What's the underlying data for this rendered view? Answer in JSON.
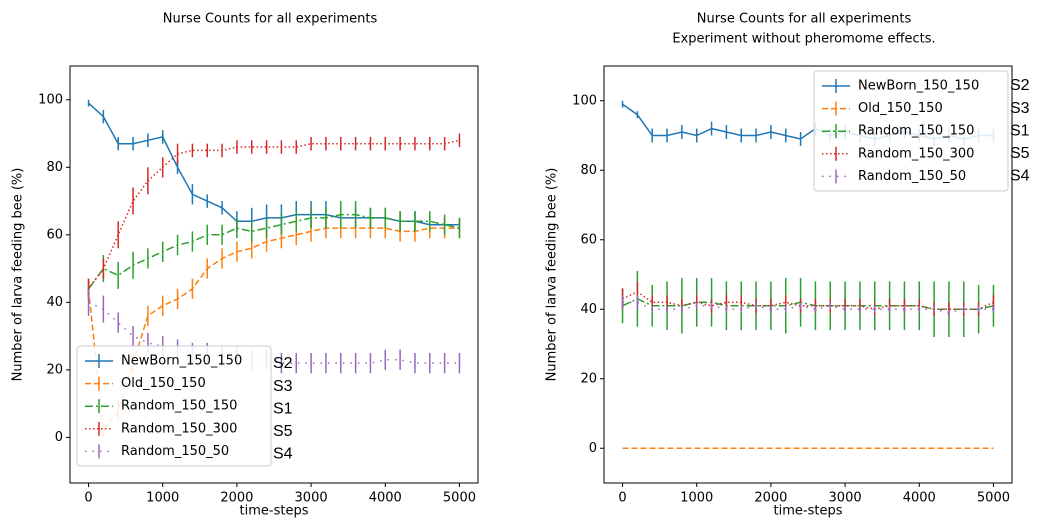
{
  "chart_data": [
    {
      "type": "line",
      "title": "Nurse Counts for all experiments",
      "xlabel": "time-steps",
      "ylabel": "Number of larva feeding bee (%)",
      "x": [
        0,
        200,
        400,
        600,
        800,
        1000,
        1200,
        1400,
        1600,
        1800,
        2000,
        2200,
        2400,
        2600,
        2800,
        3000,
        3200,
        3400,
        3600,
        3800,
        4000,
        4200,
        4400,
        4600,
        4800,
        5000
      ],
      "xlim": [
        -250,
        5250
      ],
      "ylim": [
        -13.5,
        110
      ],
      "xticks": [
        0,
        1000,
        2000,
        3000,
        4000,
        5000
      ],
      "yticks": [
        0,
        20,
        40,
        60,
        80,
        100
      ],
      "legend": "lower left",
      "annotations": [
        "S2",
        "S3",
        "S1",
        "S5",
        "S4"
      ],
      "series": [
        {
          "name": "NewBorn_150_150",
          "color": "#1f77b4",
          "linestyle": "solid",
          "values": [
            99,
            95,
            87,
            87,
            88,
            89,
            80,
            72,
            70,
            68,
            64,
            64,
            65,
            65,
            66,
            66,
            66,
            65,
            65,
            65,
            65,
            64,
            64,
            63,
            63,
            63
          ],
          "errors": [
            1,
            2,
            2,
            2,
            2,
            2,
            2,
            3,
            2,
            2,
            3,
            4,
            4,
            4,
            4,
            4,
            4,
            4,
            3,
            3,
            3,
            3,
            3,
            2,
            2,
            2
          ]
        },
        {
          "name": "Old_150_150",
          "color": "#ff7f0e",
          "linestyle": "dashed",
          "values": [
            44,
            2,
            8,
            22,
            36,
            39,
            41,
            44,
            50,
            53,
            55,
            56,
            58,
            59,
            60,
            61,
            62,
            62,
            62,
            62,
            62,
            61,
            61,
            62,
            62,
            62
          ],
          "errors": [
            2,
            2,
            3,
            3,
            3,
            3,
            3,
            3,
            3,
            3,
            3,
            3,
            3,
            3,
            3,
            3,
            3,
            3,
            3,
            3,
            3,
            3,
            3,
            3,
            3,
            3
          ]
        },
        {
          "name": "Random_150_150",
          "color": "#2ca02c",
          "linestyle": "dashdot",
          "values": [
            44,
            50,
            48,
            51,
            53,
            55,
            57,
            58,
            60,
            60,
            62,
            61,
            62,
            63,
            64,
            65,
            65,
            66,
            66,
            65,
            65,
            64,
            64,
            64,
            63,
            62
          ],
          "errors": [
            3,
            4,
            4,
            4,
            3,
            3,
            3,
            3,
            3,
            3,
            3,
            3,
            3,
            3,
            3,
            3,
            3,
            4,
            4,
            3,
            3,
            3,
            3,
            3,
            3,
            3
          ]
        },
        {
          "name": "Random_150_300",
          "color": "#d62728",
          "linestyle": "dotted",
          "values": [
            44,
            50,
            60,
            70,
            76,
            80,
            84,
            85,
            85,
            85,
            86,
            86,
            86,
            86,
            86,
            87,
            87,
            87,
            87,
            87,
            87,
            87,
            87,
            87,
            87,
            88
          ],
          "errors": [
            3,
            3,
            4,
            4,
            4,
            3,
            3,
            2,
            2,
            2,
            2,
            2,
            2,
            2,
            2,
            2,
            2,
            2,
            2,
            2,
            2,
            2,
            2,
            2,
            2,
            2
          ]
        },
        {
          "name": "Random_150_50",
          "color": "#9467bd",
          "linestyle": "loosely dotted",
          "values": [
            40,
            38,
            34,
            30,
            28,
            27,
            26,
            25,
            25,
            24,
            24,
            23,
            23,
            22,
            22,
            22,
            22,
            22,
            22,
            22,
            23,
            23,
            22,
            22,
            22,
            22
          ],
          "errors": [
            4,
            4,
            3,
            3,
            3,
            3,
            3,
            3,
            3,
            3,
            3,
            3,
            3,
            3,
            3,
            3,
            3,
            3,
            3,
            3,
            3,
            3,
            3,
            3,
            3,
            3
          ]
        }
      ]
    },
    {
      "type": "line",
      "title": "Nurse Counts for all experiments",
      "subtitle": "Experiment without pheromome effects.",
      "xlabel": "time-steps",
      "ylabel": "Number of larva feeding bee (%)",
      "x": [
        0,
        200,
        400,
        600,
        800,
        1000,
        1200,
        1400,
        1600,
        1800,
        2000,
        2200,
        2400,
        2600,
        2800,
        3000,
        3200,
        3400,
        3600,
        3800,
        4000,
        4200,
        4400,
        4600,
        4800,
        5000
      ],
      "xlim": [
        -250,
        5250
      ],
      "ylim": [
        -10,
        110
      ],
      "xticks": [
        0,
        1000,
        2000,
        3000,
        4000,
        5000
      ],
      "yticks": [
        0,
        20,
        40,
        60,
        80,
        100
      ],
      "legend": "upper right",
      "annotations": [
        "S2",
        "S3",
        "S1",
        "S5",
        "S4"
      ],
      "series": [
        {
          "name": "NewBorn_150_150",
          "color": "#1f77b4",
          "linestyle": "solid",
          "values": [
            99,
            96,
            90,
            90,
            91,
            90,
            92,
            91,
            90,
            90,
            91,
            90,
            89,
            92,
            90,
            91,
            90,
            89,
            90,
            91,
            90,
            89,
            90,
            89,
            90,
            90
          ],
          "errors": [
            1,
            1,
            2,
            2,
            2,
            2,
            2,
            2,
            2,
            2,
            2,
            2,
            2,
            2,
            2,
            2,
            2,
            2,
            2,
            2,
            2,
            2,
            2,
            2,
            2,
            2
          ]
        },
        {
          "name": "Old_150_150",
          "color": "#ff7f0e",
          "linestyle": "dashed",
          "values": [
            0,
            0,
            0,
            0,
            0,
            0,
            0,
            0,
            0,
            0,
            0,
            0,
            0,
            0,
            0,
            0,
            0,
            0,
            0,
            0,
            0,
            0,
            0,
            0,
            0,
            0
          ],
          "errors": [
            0,
            0,
            0,
            0,
            0,
            0,
            0,
            0,
            0,
            0,
            0,
            0,
            0,
            0,
            0,
            0,
            0,
            0,
            0,
            0,
            0,
            0,
            0,
            0,
            0,
            0
          ]
        },
        {
          "name": "Random_150_150",
          "color": "#2ca02c",
          "linestyle": "dashdot",
          "values": [
            41,
            43,
            41,
            41,
            41,
            42,
            42,
            41,
            41,
            41,
            41,
            41,
            42,
            41,
            41,
            41,
            41,
            41,
            41,
            41,
            41,
            40,
            40,
            40,
            40,
            41
          ],
          "errors": [
            5,
            8,
            6,
            7,
            8,
            7,
            7,
            7,
            7,
            7,
            7,
            8,
            7,
            7,
            7,
            7,
            7,
            7,
            7,
            7,
            7,
            8,
            8,
            8,
            7,
            6
          ]
        },
        {
          "name": "Random_150_300",
          "color": "#d62728",
          "linestyle": "dotted",
          "values": [
            43,
            45,
            42,
            42,
            41,
            42,
            41,
            42,
            42,
            41,
            41,
            42,
            41,
            41,
            41,
            41,
            41,
            40,
            41,
            41,
            41,
            40,
            40,
            40,
            40,
            42
          ],
          "errors": [
            3,
            3,
            2,
            2,
            2,
            2,
            2,
            2,
            2,
            2,
            2,
            2,
            2,
            2,
            2,
            2,
            2,
            2,
            2,
            2,
            2,
            2,
            2,
            2,
            2,
            2
          ]
        },
        {
          "name": "Random_150_50",
          "color": "#9467bd",
          "linestyle": "loosely dotted",
          "values": [
            42,
            42,
            40,
            40,
            40,
            41,
            41,
            40,
            40,
            41,
            40,
            40,
            41,
            40,
            41,
            40,
            40,
            40,
            40,
            40,
            40,
            40,
            39,
            40,
            40,
            40
          ],
          "errors": [
            2,
            2,
            1,
            1,
            1,
            1,
            1,
            1,
            1,
            1,
            1,
            1,
            1,
            1,
            1,
            1,
            1,
            1,
            1,
            1,
            1,
            1,
            1,
            1,
            1,
            1
          ]
        }
      ]
    }
  ]
}
